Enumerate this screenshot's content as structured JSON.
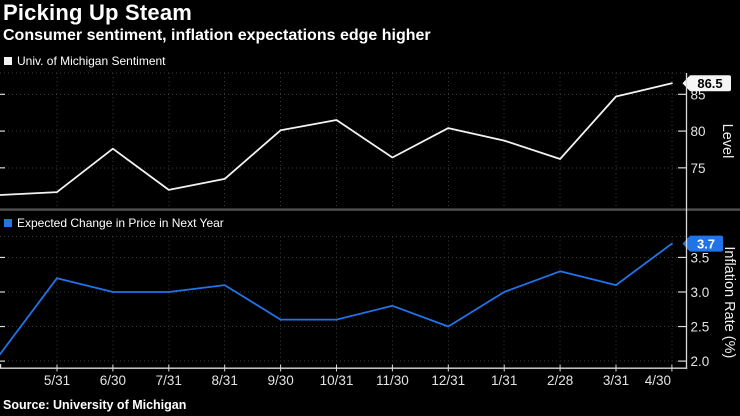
{
  "header": {
    "title": "Picking Up Steam",
    "subtitle": "Consumer sentiment, inflation expectations edge higher"
  },
  "source": "Source: University of Michigan",
  "colors": {
    "background": "#000000",
    "title_text": "#ffffff",
    "tick_text": "#e3e3e3",
    "grid": "#3a3a3a",
    "axis": "#d9d9d9",
    "divider": "#4f4f4f",
    "sentiment": "#f2f2f2",
    "inflation": "#2173e8",
    "badge_sentiment_bg": "#f5f5f5",
    "badge_sentiment_text": "#000000",
    "badge_inflation_bg": "#2173e8",
    "badge_inflation_text": "#ffffff"
  },
  "chart_data": [
    {
      "type": "line",
      "title": "Univ. of Michigan Sentiment",
      "ylabel": "Level",
      "y_axis_side": "right",
      "legend_position": "top-left",
      "grid": true,
      "categories": [
        "5/31",
        "6/30",
        "7/31",
        "8/31",
        "9/30",
        "10/31",
        "11/30",
        "12/31",
        "1/31",
        "2/28",
        "3/31",
        "4/30"
      ],
      "lead_in_value": 71.3,
      "values": [
        71.7,
        77.6,
        72.0,
        73.5,
        80.1,
        81.5,
        76.4,
        80.4,
        78.7,
        76.2,
        84.7,
        86.5
      ],
      "ytick_values": [
        75,
        80,
        85
      ],
      "ytick_labels": [
        "75",
        "80",
        "85"
      ],
      "ylim": [
        69.4,
        87.9
      ],
      "last_value_label": "86.5"
    },
    {
      "type": "line",
      "title": "Expected Change in Price in Next Year",
      "ylabel": "Inflation Rate (%)",
      "y_axis_side": "right",
      "legend_position": "top-left",
      "grid": true,
      "categories": [
        "5/31",
        "6/30",
        "7/31",
        "8/31",
        "9/30",
        "10/31",
        "11/30",
        "12/31",
        "1/31",
        "2/28",
        "3/31",
        "4/30"
      ],
      "lead_in_value": 2.1,
      "values": [
        3.2,
        3.0,
        3.0,
        3.1,
        2.6,
        2.6,
        2.8,
        2.5,
        3.0,
        3.3,
        3.1,
        3.7
      ],
      "ytick_values": [
        2.0,
        2.5,
        3.0,
        3.5
      ],
      "ytick_labels": [
        "2.0",
        "2.5",
        "3.0",
        "3.5"
      ],
      "ylim": [
        1.9,
        3.8
      ],
      "last_value_label": "3.7"
    }
  ]
}
